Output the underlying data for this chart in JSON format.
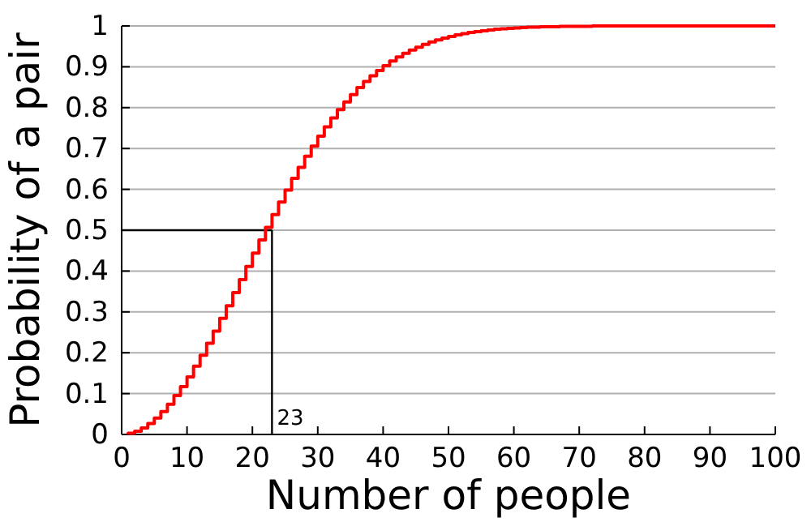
{
  "chart_data": {
    "type": "step",
    "xlabel": "Number of people",
    "ylabel": "Probability of a pair",
    "x": [
      1,
      2,
      3,
      4,
      5,
      6,
      7,
      8,
      9,
      10,
      11,
      12,
      13,
      14,
      15,
      16,
      17,
      18,
      19,
      20,
      21,
      22,
      23,
      24,
      25,
      26,
      27,
      28,
      29,
      30,
      31,
      32,
      33,
      34,
      35,
      36,
      37,
      38,
      39,
      40,
      41,
      42,
      43,
      44,
      45,
      46,
      47,
      48,
      49,
      50,
      51,
      52,
      53,
      54,
      55,
      56,
      57,
      58,
      59,
      60,
      61,
      62,
      63,
      64,
      65,
      66,
      67,
      68,
      69,
      70,
      71,
      72,
      73,
      74,
      75,
      76,
      77,
      78,
      79,
      80,
      81,
      82,
      83,
      84,
      85,
      86,
      87,
      88,
      89,
      90,
      91,
      92,
      93,
      94,
      95,
      96,
      97,
      98,
      99,
      100
    ],
    "series": [
      {
        "color": "#ff0000",
        "values": [
          0,
          0.003,
          0.008,
          0.016,
          0.027,
          0.04,
          0.056,
          0.074,
          0.095,
          0.117,
          0.141,
          0.167,
          0.194,
          0.223,
          0.253,
          0.284,
          0.315,
          0.347,
          0.379,
          0.411,
          0.444,
          0.476,
          0.507,
          0.538,
          0.569,
          0.598,
          0.627,
          0.654,
          0.681,
          0.706,
          0.73,
          0.753,
          0.775,
          0.795,
          0.814,
          0.832,
          0.849,
          0.864,
          0.878,
          0.891,
          0.903,
          0.914,
          0.924,
          0.933,
          0.941,
          0.948,
          0.955,
          0.961,
          0.966,
          0.97,
          0.974,
          0.978,
          0.981,
          0.984,
          0.986,
          0.988,
          0.99,
          0.992,
          0.993,
          0.994,
          0.995,
          0.996,
          0.997,
          0.997,
          0.998,
          0.998,
          0.998,
          0.999,
          0.999,
          0.999,
          0.999,
          0.999,
          1,
          1,
          1,
          1,
          1,
          1,
          1,
          1,
          1,
          1,
          1,
          1,
          1,
          1,
          1,
          1,
          1,
          1,
          1,
          1,
          1,
          1,
          1,
          1,
          1,
          1,
          1,
          1
        ]
      }
    ],
    "xlim": [
      0,
      100
    ],
    "xticks": [
      0,
      10,
      20,
      30,
      40,
      50,
      60,
      70,
      80,
      90,
      100
    ],
    "ylim": [
      0,
      1
    ],
    "yticks": [
      0,
      0.1,
      0.2,
      0.3,
      0.4,
      0.5,
      0.6,
      0.7,
      0.8,
      0.9,
      1
    ],
    "grid": "y",
    "ref_lines": [
      {
        "axis": "x",
        "value": 23,
        "label": "23",
        "color": "#000000"
      },
      {
        "axis": "y",
        "value": 0.5,
        "color": "#000000"
      }
    ]
  }
}
